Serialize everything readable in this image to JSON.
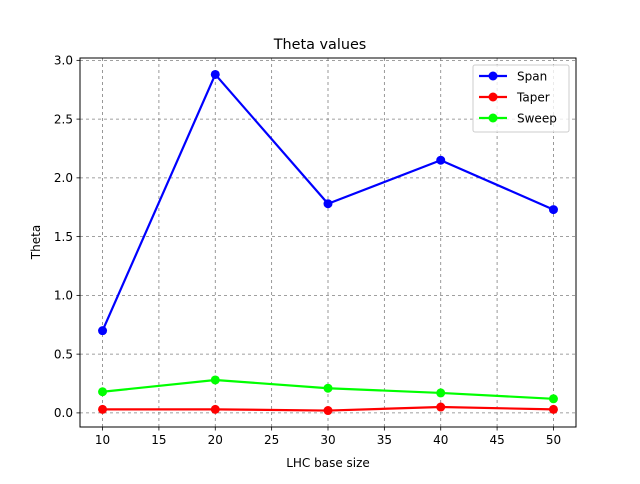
{
  "chart_data": {
    "type": "line",
    "title": "Theta values",
    "xlabel": "LHC base size",
    "ylabel": "Theta",
    "x": [
      10,
      20,
      30,
      40,
      50
    ],
    "xlim": [
      8,
      52
    ],
    "ylim": [
      -0.12,
      3.02
    ],
    "xticks": [
      10,
      15,
      20,
      25,
      30,
      35,
      40,
      45,
      50
    ],
    "yticks": [
      0.0,
      0.5,
      1.0,
      1.5,
      2.0,
      2.5,
      3.0
    ],
    "xtick_labels": [
      "10",
      "15",
      "20",
      "25",
      "30",
      "35",
      "40",
      "45",
      "50"
    ],
    "ytick_labels": [
      "0.0",
      "0.5",
      "1.0",
      "1.5",
      "2.0",
      "2.5",
      "3.0"
    ],
    "grid": true,
    "legend_position": "upper right",
    "series": [
      {
        "name": "Span",
        "color": "#0000ff",
        "values": [
          0.7,
          2.88,
          1.78,
          2.15,
          1.73
        ]
      },
      {
        "name": "Taper",
        "color": "#ff0000",
        "values": [
          0.03,
          0.03,
          0.02,
          0.05,
          0.03
        ]
      },
      {
        "name": "Sweep",
        "color": "#00ff00",
        "values": [
          0.18,
          0.28,
          0.21,
          0.17,
          0.12
        ]
      }
    ]
  }
}
